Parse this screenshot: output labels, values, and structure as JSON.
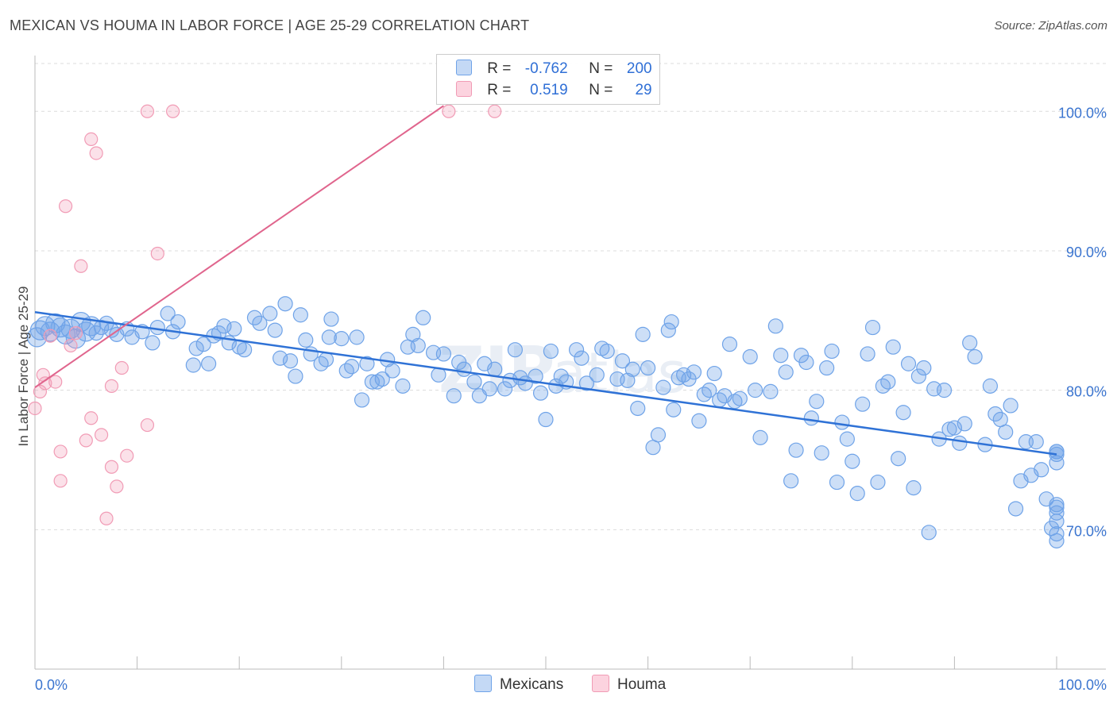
{
  "title": "MEXICAN VS HOUMA IN LABOR FORCE | AGE 25-29 CORRELATION CHART",
  "source": "Source: ZipAtlas.com",
  "legend": {
    "r_label": "R =",
    "n_label": "N =",
    "mexicans": {
      "r": "-0.762",
      "n": "200"
    },
    "houma": {
      "r": "0.519",
      "n": "29"
    }
  },
  "bottom_legend": {
    "mexicans": "Mexicans",
    "houma": "Houma"
  },
  "chart_data": {
    "type": "scatter",
    "title": "MEXICAN VS HOUMA IN LABOR FORCE | AGE 25-29 CORRELATION CHART",
    "xlabel": "",
    "ylabel": "In Labor Force | Age 25-29",
    "xlim": [
      0,
      100
    ],
    "ylim": [
      60,
      104
    ],
    "x_tick_labels": [
      "0.0%",
      "100.0%"
    ],
    "y_ticks": [
      70,
      80,
      90,
      100
    ],
    "y_tick_labels": [
      "70.0%",
      "80.0%",
      "90.0%",
      "100.0%"
    ],
    "grid": true,
    "watermark": "ZIPatlas",
    "colors": {
      "mexicans": "#6fa3e8",
      "mexicans_line": "#2f72d6",
      "houma": "#f19bb5",
      "houma_line": "#e0658d"
    },
    "series": [
      {
        "name": "Mexicans",
        "r": -0.762,
        "n": 200,
        "trend": [
          [
            0,
            85.6
          ],
          [
            100,
            75.4
          ]
        ],
        "points": [
          [
            0.2,
            83.8
          ],
          [
            0.5,
            84.3
          ],
          [
            1,
            84.6
          ],
          [
            1.5,
            84.2
          ],
          [
            2,
            84.8
          ],
          [
            2.5,
            84.5
          ],
          [
            3,
            84
          ],
          [
            3.5,
            84.4
          ],
          [
            4,
            83.7
          ],
          [
            4.5,
            84.9
          ],
          [
            5,
            84.2
          ],
          [
            5.5,
            84.6
          ],
          [
            6,
            84.1
          ],
          [
            6.5,
            84.5
          ],
          [
            7,
            84.8
          ],
          [
            7.5,
            84.3
          ],
          [
            8,
            84
          ],
          [
            9,
            84.4
          ],
          [
            9.5,
            83.8
          ],
          [
            10.5,
            84.2
          ],
          [
            11.5,
            83.4
          ],
          [
            12,
            84.5
          ],
          [
            13,
            85.5
          ],
          [
            13.5,
            84.2
          ],
          [
            14,
            84.9
          ],
          [
            15.5,
            81.8
          ],
          [
            15.8,
            83
          ],
          [
            16.5,
            83.3
          ],
          [
            17,
            81.9
          ],
          [
            17.5,
            83.9
          ],
          [
            18,
            84.1
          ],
          [
            18.5,
            84.6
          ],
          [
            19,
            83.4
          ],
          [
            19.5,
            84.4
          ],
          [
            20,
            83.1
          ],
          [
            20.5,
            82.9
          ],
          [
            21.5,
            85.2
          ],
          [
            22,
            84.8
          ],
          [
            23,
            85.5
          ],
          [
            23.5,
            84.3
          ],
          [
            24,
            82.3
          ],
          [
            24.5,
            86.2
          ],
          [
            25,
            82.1
          ],
          [
            25.5,
            81
          ],
          [
            26,
            85.4
          ],
          [
            26.5,
            83.6
          ],
          [
            27,
            82.6
          ],
          [
            28,
            81.9
          ],
          [
            28.5,
            82.2
          ],
          [
            28.8,
            83.8
          ],
          [
            29,
            85.1
          ],
          [
            30,
            83.7
          ],
          [
            30.5,
            81.4
          ],
          [
            31,
            81.7
          ],
          [
            31.5,
            83.8
          ],
          [
            32,
            79.3
          ],
          [
            32.5,
            81.9
          ],
          [
            33,
            80.6
          ],
          [
            33.5,
            80.6
          ],
          [
            34,
            80.8
          ],
          [
            34.5,
            82.2
          ],
          [
            35,
            81.4
          ],
          [
            36,
            80.3
          ],
          [
            36.5,
            83.1
          ],
          [
            37,
            84
          ],
          [
            37.5,
            83.2
          ],
          [
            38,
            85.2
          ],
          [
            39,
            82.7
          ],
          [
            39.5,
            81.1
          ],
          [
            40,
            82.6
          ],
          [
            41,
            79.6
          ],
          [
            41.5,
            82
          ],
          [
            42,
            81.5
          ],
          [
            43,
            80.6
          ],
          [
            43.5,
            79.6
          ],
          [
            44,
            81.9
          ],
          [
            44.5,
            80.1
          ],
          [
            45,
            81.5
          ],
          [
            46,
            80.1
          ],
          [
            46.5,
            80.7
          ],
          [
            47,
            82.9
          ],
          [
            47.5,
            80.9
          ],
          [
            48,
            80.5
          ],
          [
            49,
            81
          ],
          [
            49.5,
            79.8
          ],
          [
            50,
            77.9
          ],
          [
            50.5,
            82.8
          ],
          [
            51,
            80.3
          ],
          [
            51.5,
            81
          ],
          [
            52,
            80.6
          ],
          [
            53,
            82.9
          ],
          [
            53.5,
            82.3
          ],
          [
            54,
            80.5
          ],
          [
            55,
            81.1
          ],
          [
            55.5,
            83
          ],
          [
            56,
            82.8
          ],
          [
            57,
            80.8
          ],
          [
            57.5,
            82.1
          ],
          [
            58,
            80.7
          ],
          [
            58.5,
            81.5
          ],
          [
            59,
            78.7
          ],
          [
            59.5,
            84
          ],
          [
            60,
            81.6
          ],
          [
            60.5,
            75.9
          ],
          [
            61,
            76.8
          ],
          [
            61.5,
            80.2
          ],
          [
            62,
            84.3
          ],
          [
            62.3,
            84.9
          ],
          [
            62.5,
            78.6
          ],
          [
            63,
            80.9
          ],
          [
            63.5,
            81.1
          ],
          [
            64,
            80.8
          ],
          [
            64.5,
            81.3
          ],
          [
            65,
            77.8
          ],
          [
            65.5,
            79.7
          ],
          [
            66,
            80
          ],
          [
            66.5,
            81.2
          ],
          [
            67,
            79.3
          ],
          [
            67.5,
            79.6
          ],
          [
            68,
            83.3
          ],
          [
            68.5,
            79.2
          ],
          [
            69,
            79.4
          ],
          [
            70,
            82.4
          ],
          [
            70.5,
            80
          ],
          [
            71,
            76.6
          ],
          [
            72,
            79.9
          ],
          [
            72.5,
            84.6
          ],
          [
            73,
            82.5
          ],
          [
            73.5,
            81.3
          ],
          [
            74,
            73.5
          ],
          [
            74.5,
            75.7
          ],
          [
            75,
            82.5
          ],
          [
            75.5,
            82
          ],
          [
            76,
            78
          ],
          [
            76.5,
            79.2
          ],
          [
            77,
            75.5
          ],
          [
            77.5,
            81.6
          ],
          [
            78,
            82.8
          ],
          [
            78.5,
            73.4
          ],
          [
            79,
            77.7
          ],
          [
            79.5,
            76.5
          ],
          [
            80,
            74.9
          ],
          [
            80.5,
            72.6
          ],
          [
            81,
            79
          ],
          [
            81.5,
            82.6
          ],
          [
            82,
            84.5
          ],
          [
            82.5,
            73.4
          ],
          [
            83,
            80.3
          ],
          [
            83.5,
            80.6
          ],
          [
            84,
            83.1
          ],
          [
            84.5,
            75.1
          ],
          [
            85,
            78.4
          ],
          [
            85.5,
            81.9
          ],
          [
            86,
            73
          ],
          [
            86.5,
            81
          ],
          [
            87,
            81.6
          ],
          [
            87.5,
            69.8
          ],
          [
            88,
            80.1
          ],
          [
            88.5,
            76.5
          ],
          [
            89,
            80
          ],
          [
            89.5,
            77.2
          ],
          [
            90,
            77.3
          ],
          [
            90.5,
            76.2
          ],
          [
            91,
            77.6
          ],
          [
            91.5,
            83.4
          ],
          [
            92,
            82.4
          ],
          [
            93,
            76.1
          ],
          [
            93.5,
            80.3
          ],
          [
            94,
            78.3
          ],
          [
            94.5,
            77.9
          ],
          [
            95,
            77
          ],
          [
            95.5,
            78.9
          ],
          [
            96,
            71.5
          ],
          [
            96.5,
            73.5
          ],
          [
            97,
            76.3
          ],
          [
            97.5,
            73.9
          ],
          [
            98,
            76.3
          ],
          [
            98.5,
            74.3
          ],
          [
            99,
            72.2
          ],
          [
            99.5,
            70.1
          ],
          [
            100,
            75.6
          ],
          [
            100.5,
            71.8
          ],
          [
            101,
            71.2
          ],
          [
            102,
            75.6
          ],
          [
            102.5,
            69.2
          ],
          [
            103,
            71.6
          ],
          [
            103.5,
            75.4
          ],
          [
            104,
            70.6
          ],
          [
            104.5,
            69.7
          ],
          [
            105,
            74.8
          ]
        ]
      },
      {
        "name": "Houma",
        "r": 0.519,
        "n": 29,
        "trend": [
          [
            0,
            80.2
          ],
          [
            40,
            100.4
          ]
        ],
        "points": [
          [
            0,
            78.7
          ],
          [
            0.5,
            79.9
          ],
          [
            0.8,
            81.1
          ],
          [
            1,
            80.5
          ],
          [
            1.5,
            83.9
          ],
          [
            2,
            80.6
          ],
          [
            2.5,
            75.6
          ],
          [
            2.5,
            73.5
          ],
          [
            3,
            93.2
          ],
          [
            3.5,
            83.2
          ],
          [
            4,
            84.1
          ],
          [
            4.5,
            88.9
          ],
          [
            5,
            76.4
          ],
          [
            5.5,
            78
          ],
          [
            5.5,
            98
          ],
          [
            6,
            97
          ],
          [
            6.5,
            76.8
          ],
          [
            7,
            70.8
          ],
          [
            7.5,
            80.3
          ],
          [
            7.5,
            74.5
          ],
          [
            8,
            73.1
          ],
          [
            8.5,
            81.6
          ],
          [
            9,
            75.3
          ],
          [
            11,
            77.5
          ],
          [
            11,
            100
          ],
          [
            12,
            89.8
          ],
          [
            13.5,
            100
          ],
          [
            40.5,
            100
          ],
          [
            45,
            100
          ]
        ]
      }
    ]
  }
}
